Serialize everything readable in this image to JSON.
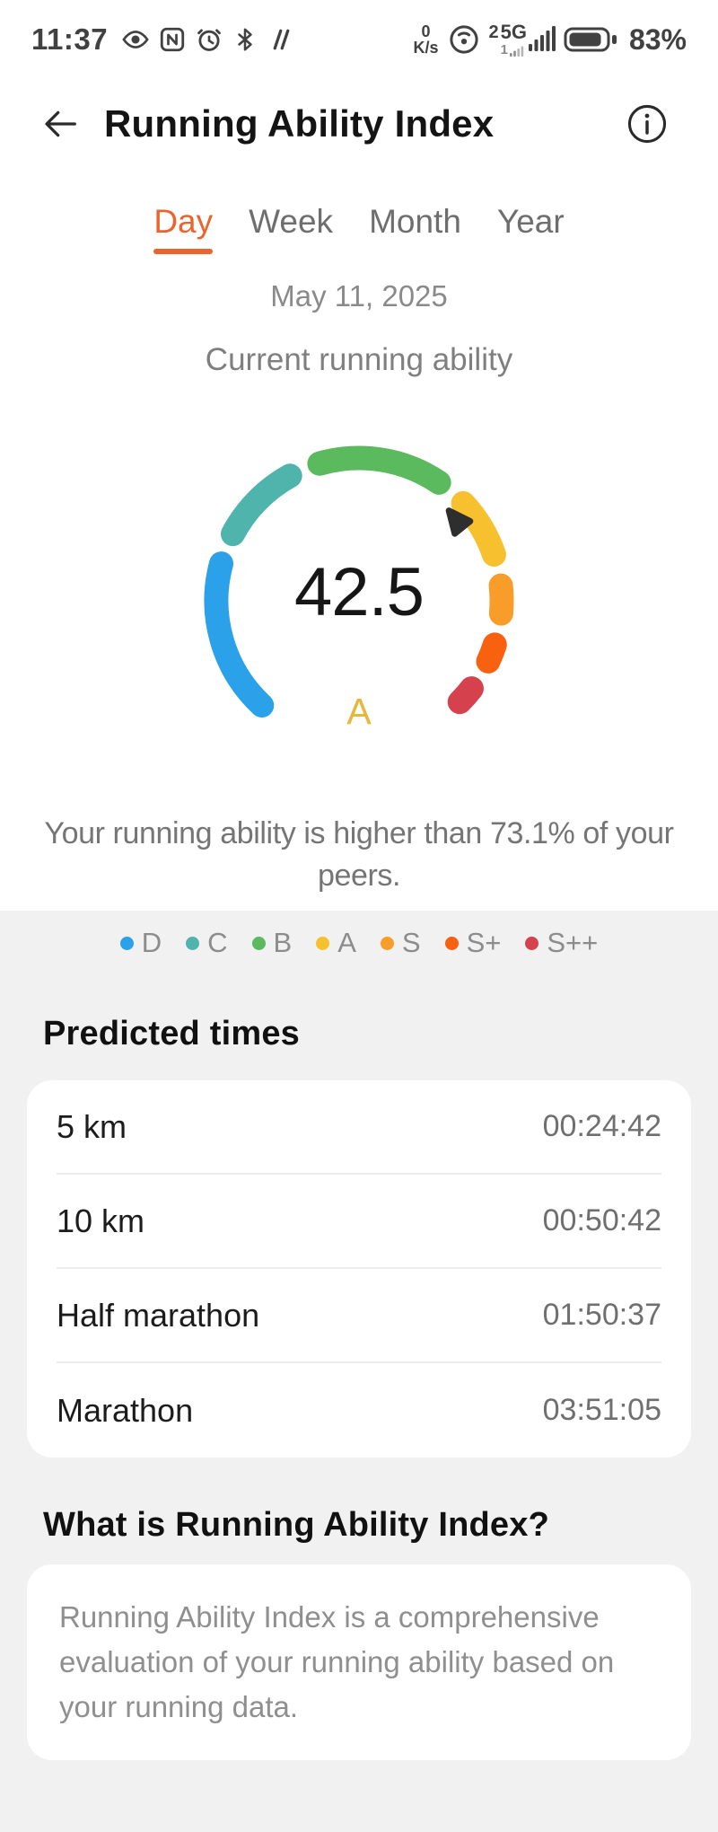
{
  "status_bar": {
    "time": "11:37",
    "left_icons": [
      "eye-icon",
      "nfc-icon",
      "alarm-icon",
      "bluetooth-icon",
      "vibrate-icon"
    ],
    "net_speed_value": "0",
    "net_speed_unit": "K/s",
    "sim_primary": "2",
    "network_type": "5G",
    "sim_secondary": "1",
    "battery_percent": "83%"
  },
  "header": {
    "title": "Running Ability Index"
  },
  "tabs": {
    "items": [
      {
        "label": "Day",
        "active": true
      },
      {
        "label": "Week",
        "active": false
      },
      {
        "label": "Month",
        "active": false
      },
      {
        "label": "Year",
        "active": false
      }
    ]
  },
  "date_label": "May 11, 2025",
  "gauge": {
    "caption": "Current running ability",
    "value": "42.5",
    "grade": "A"
  },
  "summary_text": "Your running ability is higher than 73.1% of your peers.",
  "legend": [
    {
      "label": "D",
      "color": "#2BA1E9"
    },
    {
      "label": "C",
      "color": "#4FB4AC"
    },
    {
      "label": "B",
      "color": "#5ABA5D"
    },
    {
      "label": "A",
      "color": "#F7C02F"
    },
    {
      "label": "S",
      "color": "#F99D2A"
    },
    {
      "label": "S+",
      "color": "#F7610F"
    },
    {
      "label": "S++",
      "color": "#D5414C"
    }
  ],
  "predicted": {
    "title": "Predicted times",
    "rows": [
      {
        "label": "5 km",
        "value": "00:24:42"
      },
      {
        "label": "10 km",
        "value": "00:50:42"
      },
      {
        "label": "Half marathon",
        "value": "01:50:37"
      },
      {
        "label": "Marathon",
        "value": "03:51:05"
      }
    ]
  },
  "about": {
    "title": "What is Running Ability Index?",
    "body_partial": "Running Ability Index is a comprehensive evaluation of your running ability based on your running data."
  },
  "colors": {
    "accent_orange": "#E9652D",
    "background_gray": "#F1F1F2",
    "grade_gold": "#E7B73B",
    "text_secondary": "#757575"
  },
  "chart_data": {
    "type": "gauge",
    "title": "Current running ability",
    "value": 42.5,
    "grade": "A",
    "percentile": 73.1,
    "grade_scale": [
      "D",
      "C",
      "B",
      "A",
      "S",
      "S+",
      "S++"
    ],
    "arc_span_deg": [
      -142,
      140
    ],
    "pointer_angle_deg": 51,
    "segments": [
      {
        "grade": "D",
        "color": "#2BA1E9",
        "start_deg": -142,
        "end_deg": -70
      },
      {
        "grade": "C",
        "color": "#4FB4AC",
        "start_deg": -67,
        "end_deg": -24
      },
      {
        "grade": "B",
        "color": "#5ABA5D",
        "start_deg": -21,
        "end_deg": 39
      },
      {
        "grade": "A",
        "color": "#F7C02F",
        "start_deg": 42,
        "end_deg": 76
      },
      {
        "grade": "S",
        "color": "#F99D2A",
        "start_deg": 79,
        "end_deg": 100
      },
      {
        "grade": "S+",
        "color": "#F7610F",
        "start_deg": 103,
        "end_deg": 120
      },
      {
        "grade": "S++",
        "color": "#D5414C",
        "start_deg": 123,
        "end_deg": 140
      }
    ]
  }
}
